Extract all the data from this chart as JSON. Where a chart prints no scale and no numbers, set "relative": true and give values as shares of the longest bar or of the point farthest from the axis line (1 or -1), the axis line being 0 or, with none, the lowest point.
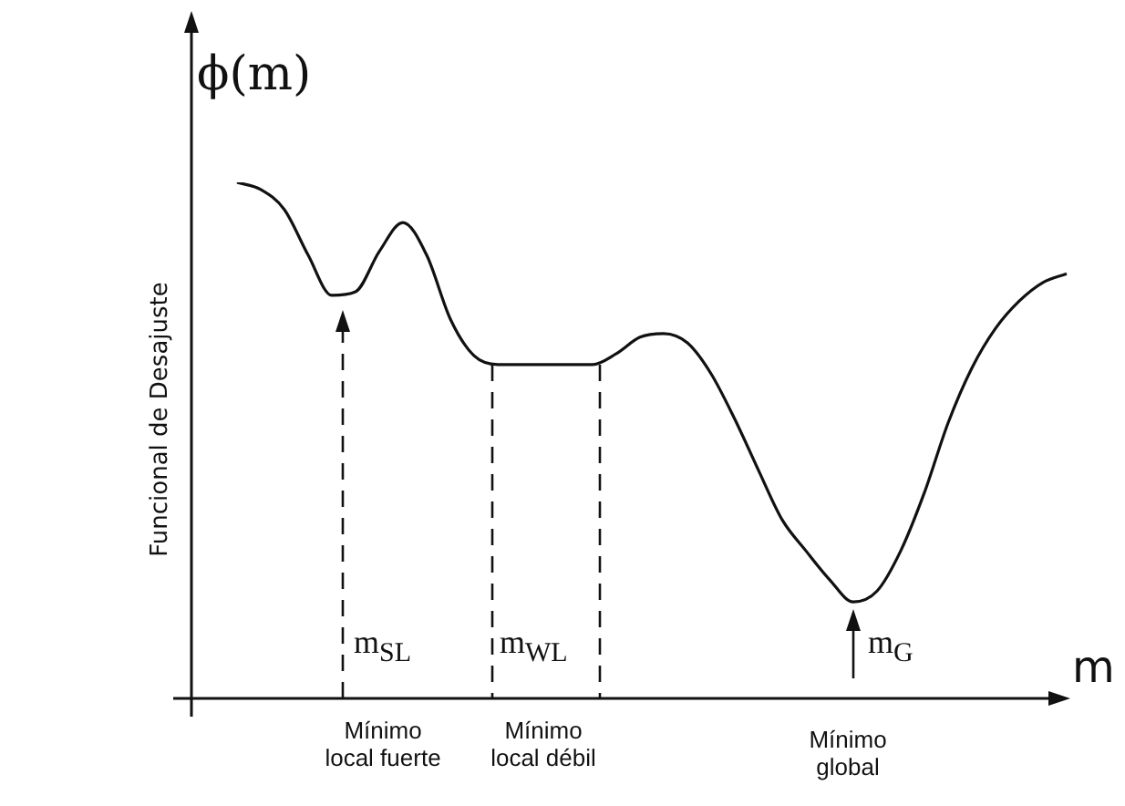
{
  "chart_data": {
    "type": "line",
    "relative": true,
    "xlabel": "m",
    "ylabel": "Funcional de Desajuste",
    "annotations": [
      "ϕ(m)",
      "m$_{SL}$",
      "m$_{WL}$",
      "m$_{G}$",
      "Mínimo local fuerte",
      "Mínimo local débil",
      "Mínimo global"
    ],
    "categories": [
      null,
      null,
      null,
      null,
      null,
      null,
      null,
      null,
      null,
      null,
      null,
      null,
      null,
      null,
      null,
      null,
      null,
      null,
      null,
      null,
      null,
      null,
      null,
      null,
      null,
      null,
      null,
      null,
      null,
      null,
      null,
      null,
      null,
      null,
      null,
      null
    ],
    "series": [
      {
        "color": "#111111",
        "values": [
          1,
          0.986,
          0.947,
          0.859,
          0.781,
          0.788,
          0.866,
          0.922,
          0.859,
          0.735,
          0.664,
          0.647,
          0.647,
          0.647,
          0.647,
          0.647,
          0.668,
          0.7,
          0.707,
          0.689,
          0.629,
          0.541,
          0.442,
          0.346,
          0.286,
          0.23,
          0.187,
          0.208,
          0.286,
          0.399,
          0.534,
          0.64,
          0.717,
          0.77,
          0.806,
          0.823
        ]
      }
    ],
    "legend": false,
    "marker": "none",
    "line_style": "solid"
  }
}
